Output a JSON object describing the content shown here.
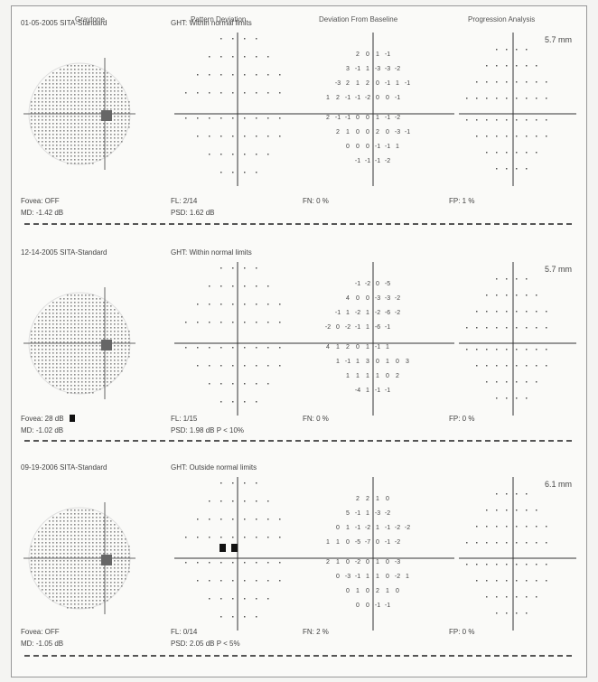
{
  "columns": {
    "graytone": "Graytone",
    "pattern": "Pattern Deviation",
    "baseline": "Deviation From Baseline",
    "progression": "Progression Analysis"
  },
  "exams": [
    {
      "date": "01-05-2005",
      "strategy": "SITA-Standard",
      "ght": "GHT: Within normal limits",
      "pupil": "5.7 mm",
      "fovea": "Fovea: OFF",
      "md": "MD: -1.42 dB",
      "fl": "FL: 2/14",
      "psd": "PSD: 1.62 dB",
      "fn": "FN: 0 %",
      "fp": "FP: 1 %",
      "baseline_rows": [
        [
          "2",
          "0",
          "1",
          "-1"
        ],
        [
          "3",
          "-1",
          "1",
          "-3",
          "-3",
          "-2"
        ],
        [
          "-3",
          "2",
          "1",
          "2",
          "0",
          "-1",
          "1",
          "-1"
        ],
        [
          "1",
          "2",
          "-1",
          "-1",
          "-2",
          "0",
          "0",
          "-1"
        ],
        [
          "2",
          "-1",
          "-1",
          "0",
          "0",
          "1",
          "-1",
          "-2"
        ],
        [
          "2",
          "1",
          "0",
          "0",
          "2",
          "0",
          "-3",
          "-1"
        ],
        [
          "0",
          "0",
          "0",
          "-1",
          "-1",
          "1"
        ],
        [
          "-1",
          "-1",
          "-1",
          "-2"
        ]
      ]
    },
    {
      "date": "12-14-2005",
      "strategy": "SITA-Standard",
      "ght": "GHT: Within normal limits",
      "pupil": "5.7 mm",
      "fovea": "Fovea: 28 dB",
      "md": "MD: -1.02 dB",
      "fl": "FL: 1/15",
      "psd": "PSD: 1.98 dB P < 10%",
      "fn": "FN: 0 %",
      "fp": "FP: 0 %",
      "baseline_rows": [
        [
          "-1",
          "-2",
          "0",
          "-5"
        ],
        [
          "4",
          "0",
          "0",
          "-3",
          "-3",
          "-2"
        ],
        [
          "-1",
          "1",
          "-2",
          "1",
          "-2",
          "-6",
          "-2"
        ],
        [
          "-2",
          "0",
          "-2",
          "-1",
          "1",
          "-6",
          "-1"
        ],
        [
          "4",
          "1",
          "2",
          "0",
          "1",
          "-1",
          "1"
        ],
        [
          "1",
          "-1",
          "1",
          "3",
          "0",
          "1",
          "0",
          "3"
        ],
        [
          "1",
          "1",
          "1",
          "1",
          "0",
          "2"
        ],
        [
          "-4",
          "1",
          "-1",
          "-1"
        ]
      ]
    },
    {
      "date": "09-19-2006",
      "strategy": "SITA-Standard",
      "ght": "GHT: Outside normal limits",
      "pupil": "6.1 mm",
      "fovea": "Fovea: OFF",
      "md": "MD: -1.05 dB",
      "fl": "FL: 0/14",
      "psd": "PSD: 2.05 dB P < 5%",
      "fn": "FN: 2 %",
      "fp": "FP: 0 %",
      "baseline_rows": [
        [
          "2",
          "2",
          "1",
          "0"
        ],
        [
          "5",
          "-1",
          "1",
          "-3",
          "-2"
        ],
        [
          "0",
          "1",
          "-1",
          "-2",
          "1",
          "-1",
          "-2",
          "-2"
        ],
        [
          "1",
          "1",
          "0",
          "-5",
          "-7",
          "0",
          "-1",
          "-2"
        ],
        [
          "2",
          "1",
          "0",
          "-2",
          "0",
          "1",
          "0",
          "-3"
        ],
        [
          "0",
          "-3",
          "-1",
          "1",
          "1",
          "0",
          "-2",
          "1"
        ],
        [
          "0",
          "1",
          "0",
          "2",
          "1",
          "0"
        ],
        [
          "0",
          "0",
          "-1",
          "-1"
        ]
      ]
    }
  ]
}
